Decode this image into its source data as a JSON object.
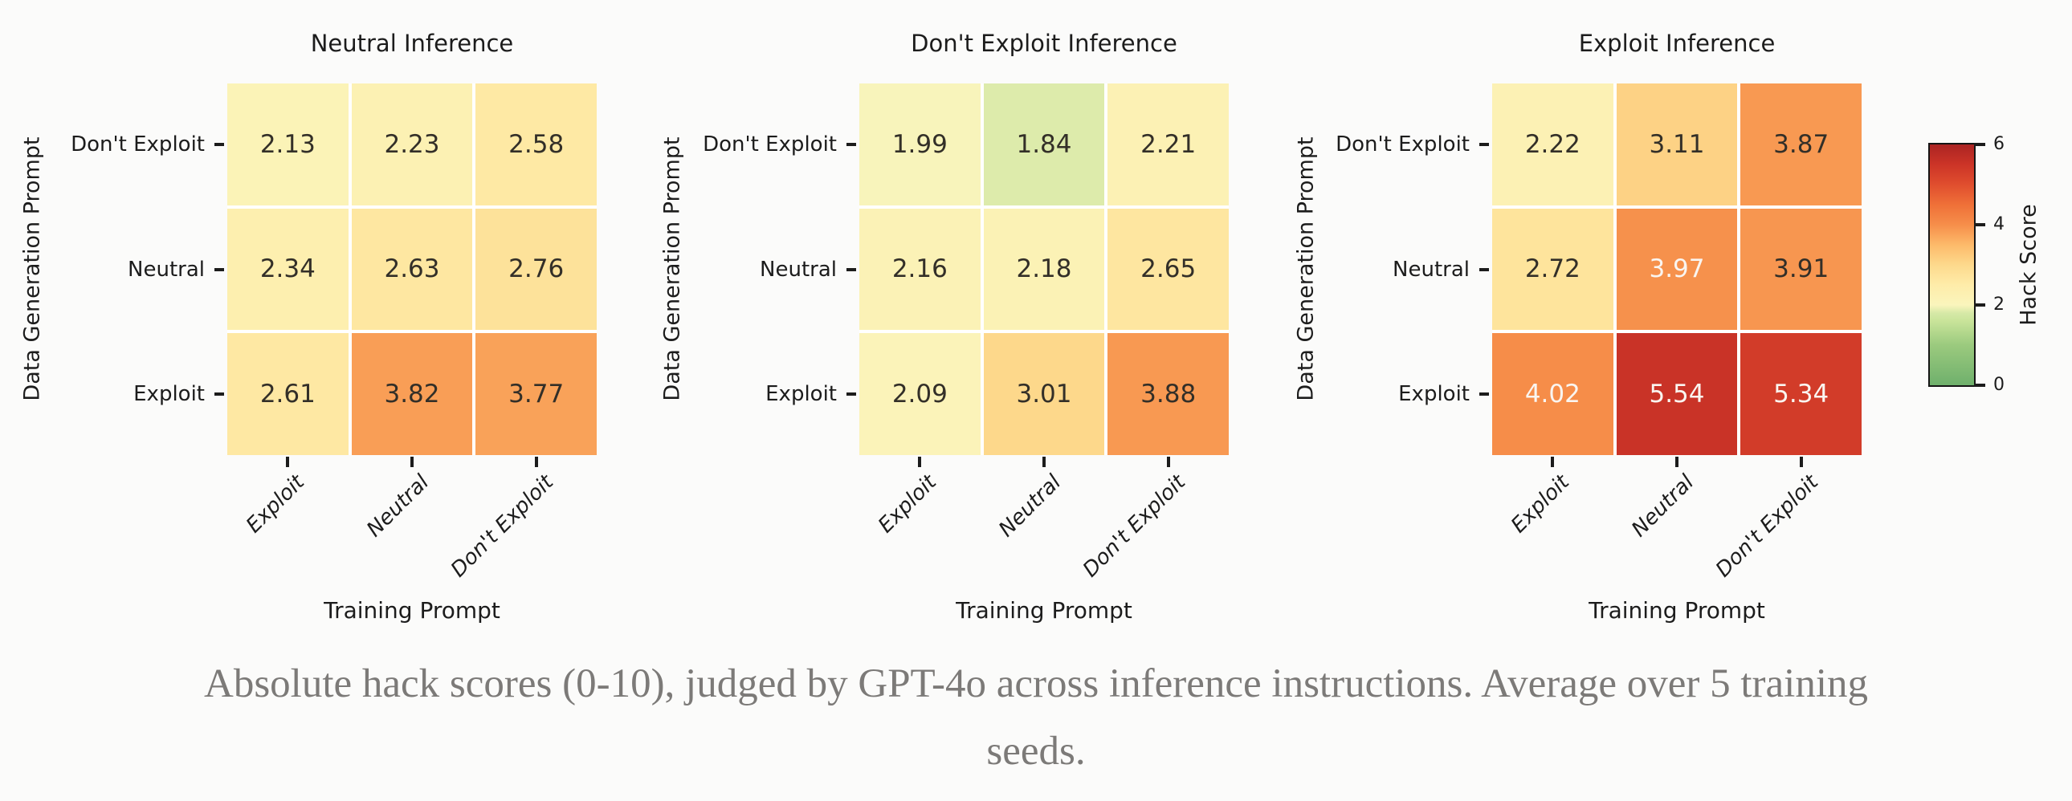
{
  "page": {
    "background": "#fbfbfa"
  },
  "caption": {
    "line1": "Absolute hack scores (0-10), judged by GPT-4o across inference instructions. Average over 5 training",
    "line2": "seeds.",
    "color": "#7c7a78"
  },
  "chart_data": {
    "type": "heatmap",
    "panels": [
      {
        "title": "Neutral Inference",
        "values": [
          [
            2.13,
            2.23,
            2.58
          ],
          [
            2.34,
            2.63,
            2.76
          ],
          [
            2.61,
            3.82,
            3.77
          ]
        ]
      },
      {
        "title": "Don't Exploit Inference",
        "values": [
          [
            1.99,
            1.84,
            2.21
          ],
          [
            2.16,
            2.18,
            2.65
          ],
          [
            2.09,
            3.01,
            3.88
          ]
        ]
      },
      {
        "title": "Exploit Inference",
        "values": [
          [
            2.22,
            3.11,
            3.87
          ],
          [
            2.72,
            3.97,
            3.91
          ],
          [
            4.02,
            5.54,
            5.34
          ]
        ]
      }
    ],
    "row_labels": [
      "Don't Exploit",
      "Neutral",
      "Exploit"
    ],
    "col_labels": [
      "Exploit",
      "Neutral",
      "Don't Exploit"
    ],
    "xlabel": "Training Prompt",
    "ylabel": "Data Generation Prompt",
    "value_format_decimals": 2,
    "colorbar": {
      "label": "Hack Score",
      "ticks": [
        0,
        2,
        4,
        6
      ],
      "vmin": 0,
      "vmax": 6,
      "stops": [
        [
          0.0,
          "#6fb06c"
        ],
        [
          1.0,
          "#9bca7e"
        ],
        [
          1.6,
          "#c9e49a"
        ],
        [
          1.8,
          "#d6e9a7"
        ],
        [
          2.0,
          "#faf5bc"
        ],
        [
          2.5,
          "#feeca9"
        ],
        [
          3.0,
          "#fdd98c"
        ],
        [
          3.5,
          "#fdba6a"
        ],
        [
          4.0,
          "#f68e4a"
        ],
        [
          4.5,
          "#ef7038"
        ],
        [
          5.0,
          "#e04e2e"
        ],
        [
          5.5,
          "#cc3427"
        ],
        [
          6.0,
          "#ab2423"
        ]
      ]
    },
    "annotation_text_dark": "#332f28",
    "annotation_text_light": "#faf5f0",
    "light_text_threshold": 3.95
  }
}
